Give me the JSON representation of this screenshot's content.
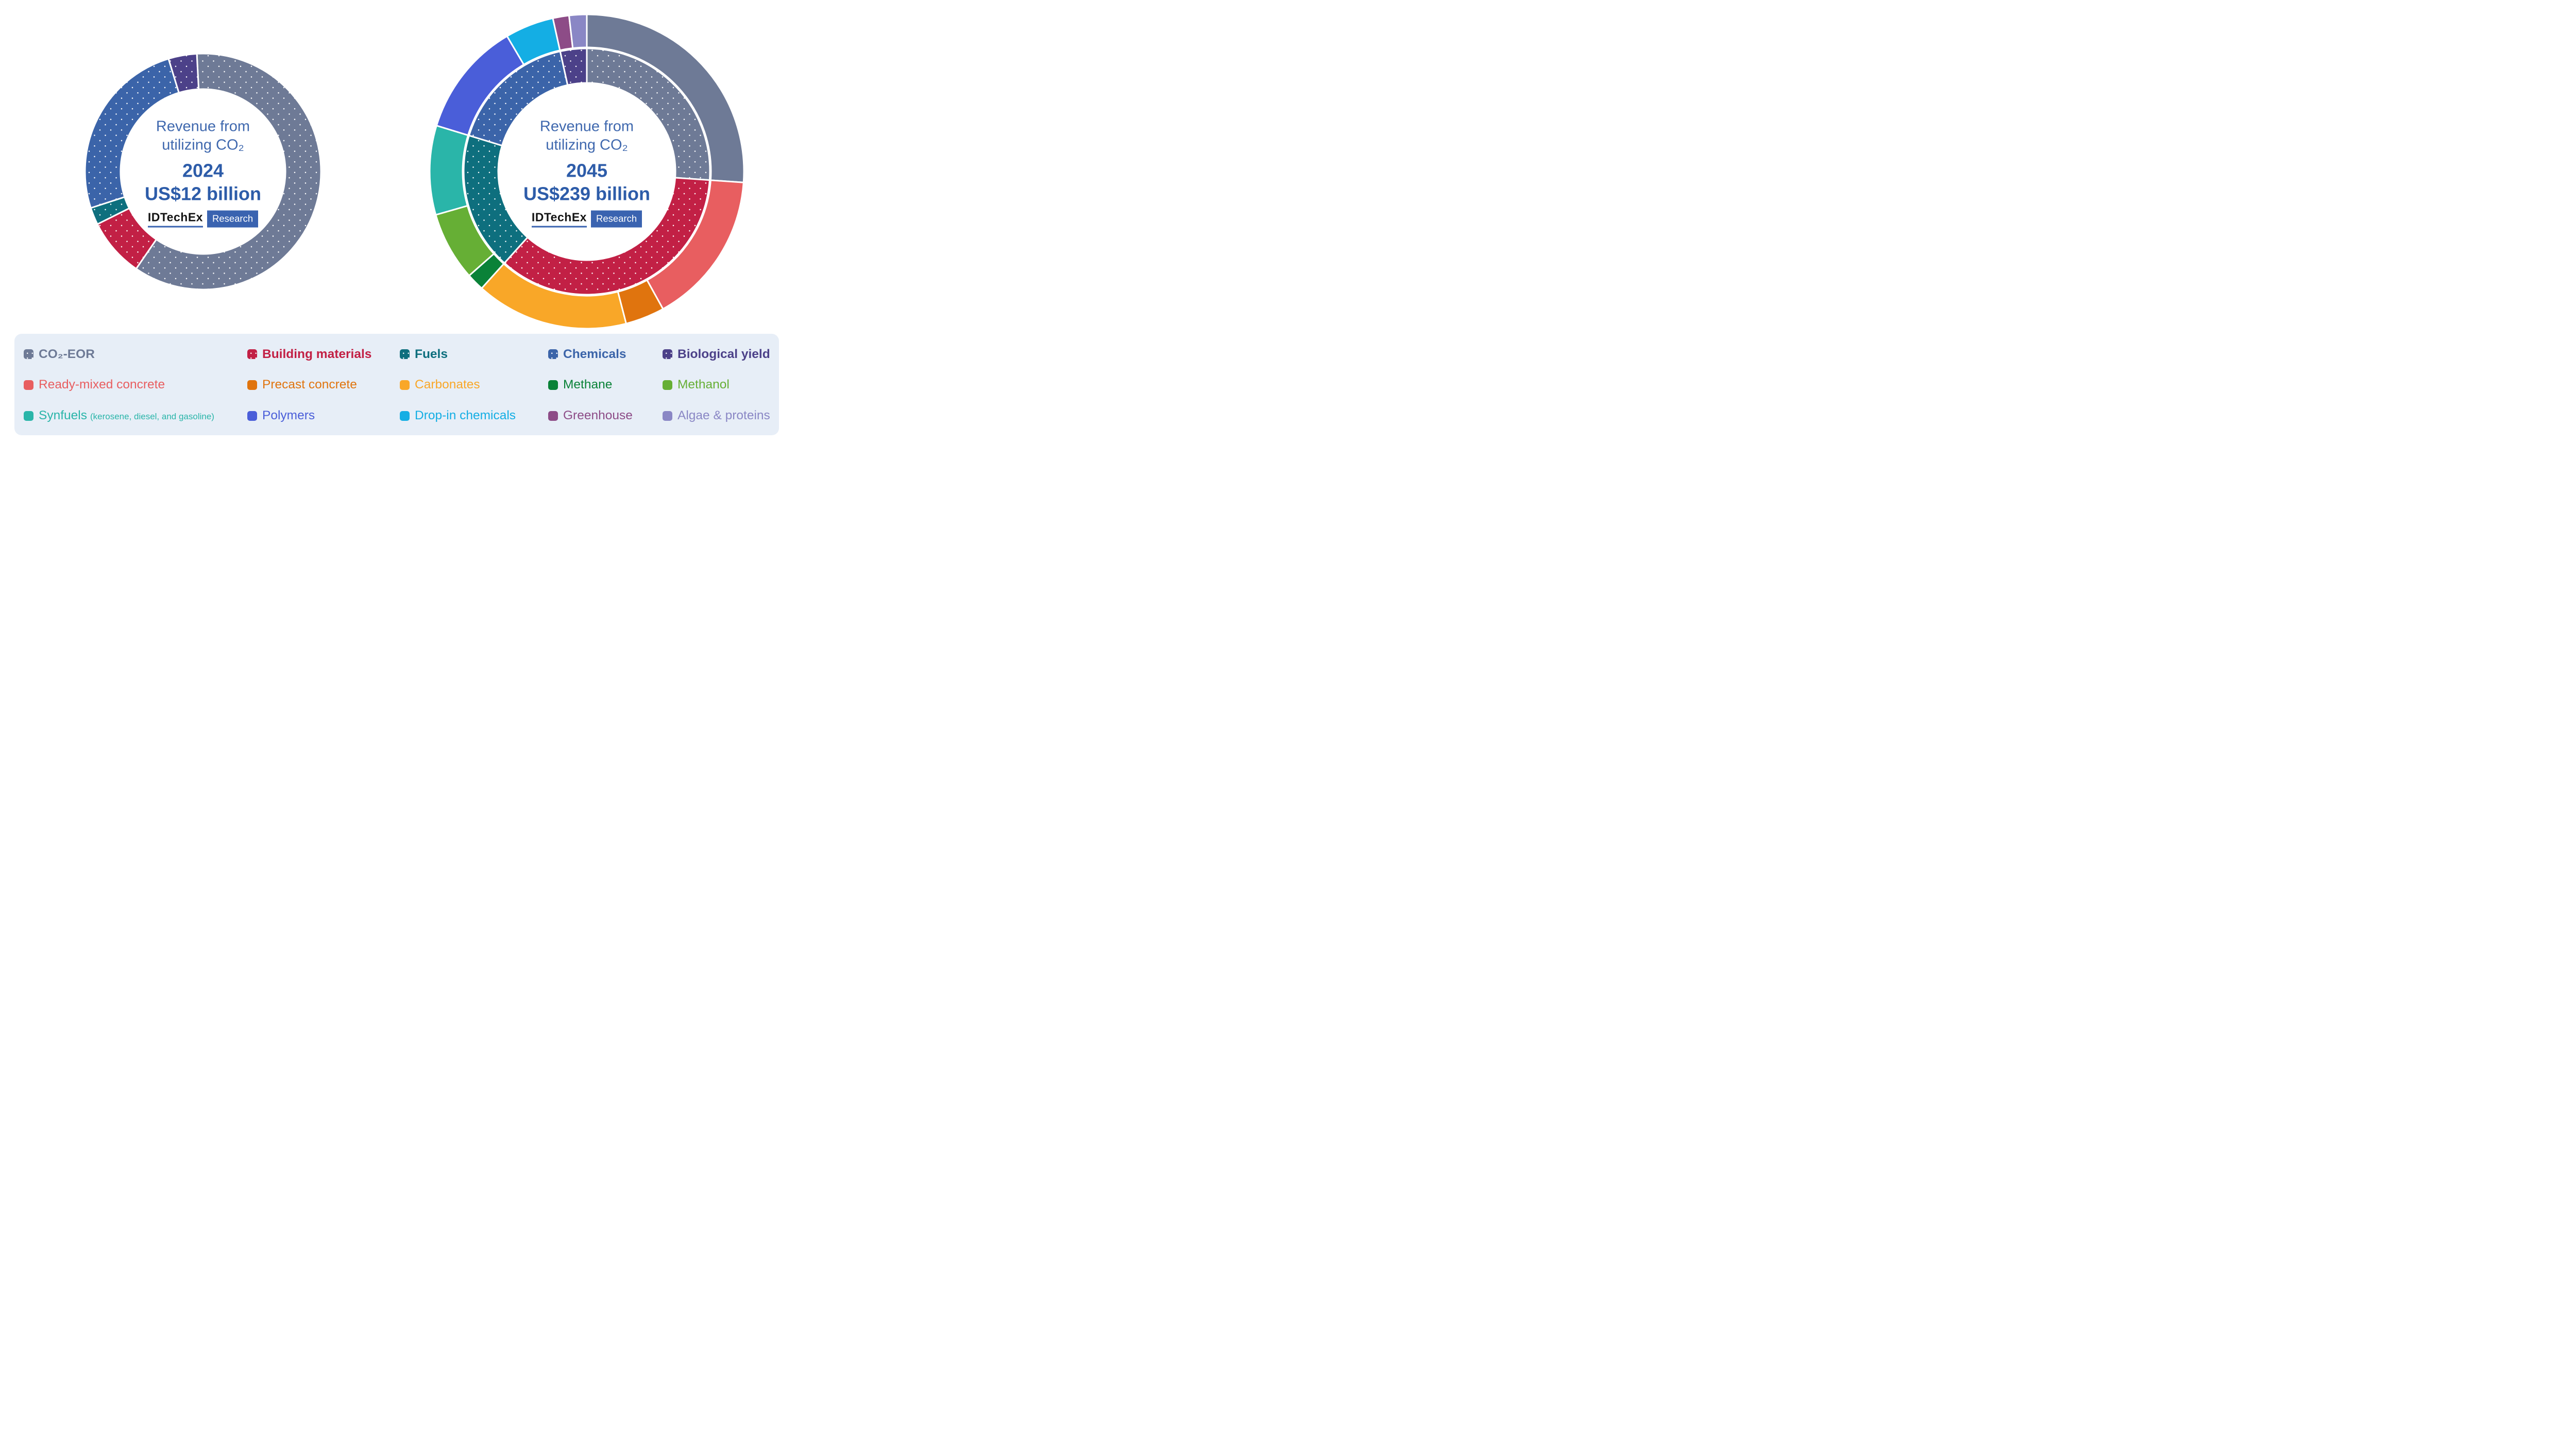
{
  "background_color": "#ffffff",
  "legend_background": "#E7EEF7",
  "chart_data": {
    "type": "pie",
    "subtype": "double-donut-comparison",
    "unit": "US$ billion",
    "pattern_note": "inner/2024 rings use white polka-dot fill; 2045 outer ring solid",
    "charts": [
      {
        "name": "2024",
        "title_line1": "Revenue from",
        "title_line2": "utilizing CO₂",
        "year": "2024",
        "total_label": "US$12 billion",
        "total_value_usd_billion": 12,
        "logo": {
          "brand": "IDTechEx",
          "suffix": "Research"
        },
        "rings": [
          {
            "style": "dotted",
            "segments": [
              {
                "label": "CO₂-EOR",
                "color": "#6E7A96",
                "start_deg": 357,
                "end_deg": 574.5,
                "share_pct": 60.4,
                "value_usd_billion": 7.2
              },
              {
                "label": "Building materials",
                "color": "#C22045",
                "start_deg": 214.5,
                "end_deg": 243.5,
                "share_pct": 8.1,
                "value_usd_billion": 1.0
              },
              {
                "label": "Fuels",
                "color": "#0E6F7E",
                "start_deg": 243.5,
                "end_deg": 252,
                "share_pct": 2.4,
                "value_usd_billion": 0.3
              },
              {
                "label": "Chemicals",
                "color": "#3B64A9",
                "start_deg": 252,
                "end_deg": 343,
                "share_pct": 25.3,
                "value_usd_billion": 3.0
              },
              {
                "label": "Biological yield",
                "color": "#4C4189",
                "start_deg": 343,
                "end_deg": 357,
                "share_pct": 3.9,
                "value_usd_billion": 0.5
              }
            ]
          }
        ]
      },
      {
        "name": "2045",
        "title_line1": "Revenue from",
        "title_line2": "utilizing CO₂",
        "year": "2045",
        "total_label": "US$239 billion",
        "total_value_usd_billion": 239,
        "logo": {
          "brand": "IDTechEx",
          "suffix": "Research"
        },
        "rings": [
          {
            "style": "dotted",
            "ring_role": "inner-categories",
            "segments": [
              {
                "label": "CO₂-EOR",
                "color": "#6E7A96",
                "start_deg": 0,
                "end_deg": 94,
                "share_pct": 26.1,
                "value_usd_billion": 62
              },
              {
                "label": "Building materials",
                "color": "#C22045",
                "start_deg": 94,
                "end_deg": 222,
                "share_pct": 35.6,
                "value_usd_billion": 85
              },
              {
                "label": "Fuels",
                "color": "#0E6F7E",
                "start_deg": 222,
                "end_deg": 287,
                "share_pct": 18.1,
                "value_usd_billion": 43
              },
              {
                "label": "Chemicals",
                "color": "#3B64A9",
                "start_deg": 287,
                "end_deg": 347.5,
                "share_pct": 16.8,
                "value_usd_billion": 40
              },
              {
                "label": "Biological yield",
                "color": "#4C4189",
                "start_deg": 347.5,
                "end_deg": 360,
                "share_pct": 3.5,
                "value_usd_billion": 8
              }
            ]
          },
          {
            "style": "solid",
            "ring_role": "outer-subcategories",
            "segments": [
              {
                "label": "CO₂-EOR",
                "color": "#6E7A96",
                "start_deg": 0,
                "end_deg": 94,
                "share_pct": 26.1,
                "value_usd_billion": 62
              },
              {
                "label": "Ready-mixed concrete",
                "color": "#E85E60",
                "start_deg": 94,
                "end_deg": 151,
                "share_pct": 15.8,
                "value_usd_billion": 38
              },
              {
                "label": "Precast concrete",
                "color": "#E0740E",
                "start_deg": 151,
                "end_deg": 165.5,
                "share_pct": 4.0,
                "value_usd_billion": 10
              },
              {
                "label": "Carbonates",
                "color": "#F9A728",
                "start_deg": 165.5,
                "end_deg": 222,
                "share_pct": 15.7,
                "value_usd_billion": 37
              },
              {
                "label": "Methane",
                "color": "#0A8238",
                "start_deg": 222,
                "end_deg": 228.5,
                "share_pct": 1.8,
                "value_usd_billion": 4
              },
              {
                "label": "Methanol",
                "color": "#66AF35",
                "start_deg": 228.5,
                "end_deg": 254,
                "share_pct": 7.1,
                "value_usd_billion": 17
              },
              {
                "label": "Synfuels",
                "color": "#2AB5A9",
                "start_deg": 254,
                "end_deg": 287,
                "share_pct": 9.2,
                "value_usd_billion": 22
              },
              {
                "label": "Polymers",
                "color": "#4A5ED9",
                "start_deg": 287,
                "end_deg": 329.5,
                "share_pct": 11.8,
                "value_usd_billion": 28
              },
              {
                "label": "Drop-in chemicals",
                "color": "#14AEE4",
                "start_deg": 329.5,
                "end_deg": 347.5,
                "share_pct": 5.0,
                "value_usd_billion": 12
              },
              {
                "label": "Greenhouse",
                "color": "#8D4C87",
                "start_deg": 347.5,
                "end_deg": 353.5,
                "share_pct": 1.7,
                "value_usd_billion": 4
              },
              {
                "label": "Algae & proteins",
                "color": "#8A87C5",
                "start_deg": 353.5,
                "end_deg": 360,
                "share_pct": 1.8,
                "value_usd_billion": 4
              }
            ]
          }
        ]
      }
    ]
  },
  "legend": {
    "rows": [
      [
        {
          "label": "CO₂-EOR",
          "color": "#6E7A96",
          "dotted": true
        },
        {
          "label": "Building materials",
          "color": "#C22045",
          "dotted": true
        },
        {
          "label": "Fuels",
          "color": "#0E6F7E",
          "dotted": true
        },
        {
          "label": "Chemicals",
          "color": "#3B64A9",
          "dotted": true
        },
        {
          "label": "Biological yield",
          "color": "#4C4189",
          "dotted": true
        }
      ],
      [
        {
          "label": "Ready-mixed concrete",
          "color": "#E85E60"
        },
        {
          "label": "Precast concrete",
          "color": "#E0740E"
        },
        {
          "label": "Carbonates",
          "color": "#F9A728"
        },
        {
          "label": "Methane",
          "color": "#0A8238"
        },
        {
          "label": "Methanol",
          "color": "#66AF35"
        }
      ],
      [
        {
          "label": "Synfuels",
          "suffix": "(kerosene, diesel, and gasoline)",
          "color": "#2AB5A9"
        },
        {
          "label": "Polymers",
          "color": "#4A5ED9"
        },
        {
          "label": "Drop-in chemicals",
          "color": "#14AEE4"
        },
        {
          "label": "Greenhouse",
          "color": "#8D4C87"
        },
        {
          "label": "Algae & proteins",
          "color": "#8A87C5"
        }
      ]
    ]
  }
}
